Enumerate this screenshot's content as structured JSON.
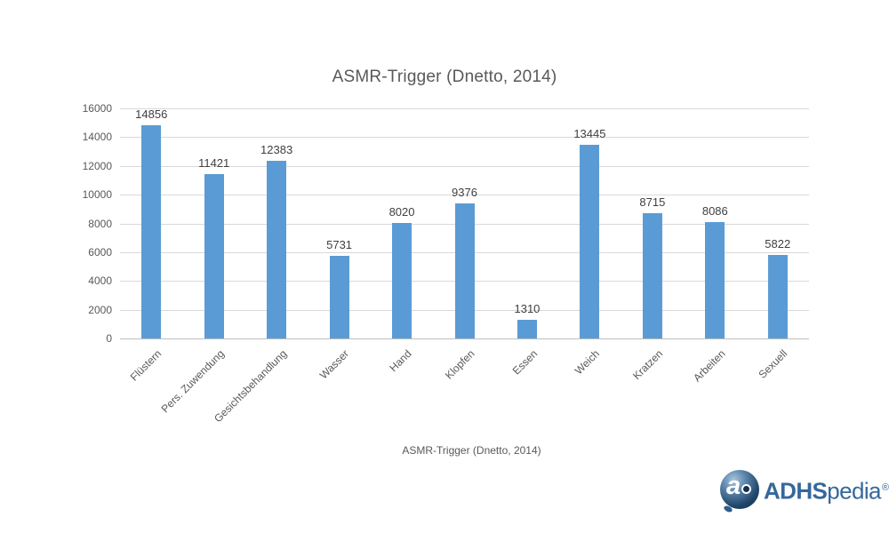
{
  "chart_data": {
    "type": "bar",
    "title": "ASMR-Trigger (Dnetto, 2014)",
    "categories": [
      "Flüstern",
      "Pers. Zuwendung",
      "Gesichtsbehandlung",
      "Wasser",
      "Hand",
      "Klopfen",
      "Essen",
      "Weich",
      "Kratzen",
      "Arbeiten",
      "Sexuell"
    ],
    "values": [
      14856,
      11421,
      12383,
      5731,
      8020,
      9376,
      1310,
      13445,
      8715,
      8086,
      5822
    ],
    "xlabel": "",
    "ylabel": "",
    "ylim": [
      0,
      16000
    ],
    "yticks": [
      0,
      2000,
      4000,
      6000,
      8000,
      10000,
      12000,
      14000,
      16000
    ],
    "grid": true,
    "data_labels": true,
    "bar_color": "#5b9bd5",
    "legend": {
      "position": "bottom",
      "label": "ASMR-Trigger (Dnetto, 2014)"
    }
  },
  "colors": {
    "bar": "#5b9bd5",
    "gridline": "#d9d9d9",
    "axis_line": "#bfbfbf",
    "text_gray": "#595959",
    "data_label": "#404040",
    "brand_blue": "#35689c"
  },
  "logo": {
    "icon": "adhspedia-sphere-icon",
    "text_bold": "ADHS",
    "text_regular": "pedia",
    "registered": "®"
  }
}
